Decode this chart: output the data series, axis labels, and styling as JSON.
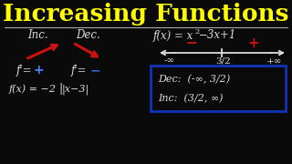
{
  "bg_color": "#0a0a0a",
  "title_text": "Increasing Functions",
  "title_color": "#FFFF00",
  "separator_color": "#AAAAAA",
  "white": "#DDDDDD",
  "red": "#CC1111",
  "blue_plus": "#4488FF",
  "blue_minus": "#3366DD",
  "box_color": "#1133BB",
  "inc_label": "Inc.",
  "dec_label": "Dec.",
  "minus_inf": "-∞",
  "plus_inf": "+∞",
  "critical": "3/2",
  "dec_interval": "Dec:  (-∞, 3/2)",
  "inc_interval": "Inc:  (3/2, ∞)"
}
